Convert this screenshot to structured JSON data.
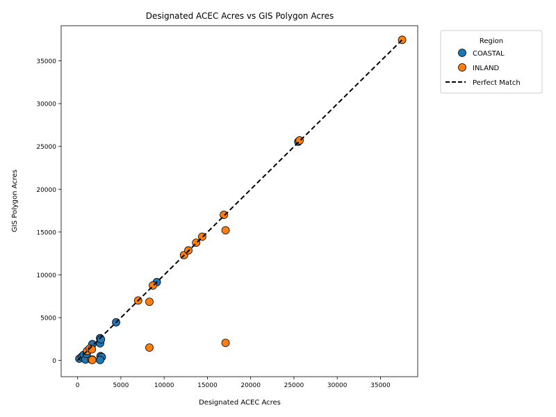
{
  "chart_data": {
    "type": "scatter",
    "title": "Designated ACEC Acres vs GIS Polygon Acres",
    "xlabel": "Designated ACEC Acres",
    "ylabel": "GIS Polygon Acres",
    "xlim": [
      -1900,
      39300
    ],
    "ylim": [
      -1900,
      39100
    ],
    "xticks": [
      0,
      5000,
      10000,
      15000,
      20000,
      25000,
      30000,
      35000
    ],
    "yticks": [
      0,
      5000,
      10000,
      15000,
      20000,
      25000,
      30000,
      35000
    ],
    "grid": false,
    "legend": {
      "title": "Region",
      "placement": "outside-top-right",
      "entries": [
        "COASTAL",
        "INLAND",
        "Perfect Match"
      ]
    },
    "series": [
      {
        "name": "COASTAL",
        "color": "#1f77b4",
        "points": [
          [
            200,
            200
          ],
          [
            500,
            450
          ],
          [
            700,
            650
          ],
          [
            900,
            100
          ],
          [
            1050,
            750
          ],
          [
            1700,
            1900
          ],
          [
            2600,
            2000
          ],
          [
            2600,
            2600
          ],
          [
            2700,
            2450
          ],
          [
            2650,
            500
          ],
          [
            2800,
            400
          ],
          [
            2600,
            50
          ],
          [
            1700,
            100
          ],
          [
            4450,
            4450
          ],
          [
            9150,
            9150
          ],
          [
            25500,
            25550
          ]
        ]
      },
      {
        "name": "INLAND",
        "color": "#ff7f0e",
        "points": [
          [
            1100,
            1100
          ],
          [
            1400,
            1400
          ],
          [
            1650,
            1300
          ],
          [
            1600,
            100
          ],
          [
            1700,
            50
          ],
          [
            7000,
            7000
          ],
          [
            8300,
            6850
          ],
          [
            8700,
            8750
          ],
          [
            8300,
            1500
          ],
          [
            12300,
            12300
          ],
          [
            12800,
            12850
          ],
          [
            13700,
            13750
          ],
          [
            14400,
            14450
          ],
          [
            16900,
            17000
          ],
          [
            17100,
            15200
          ],
          [
            17100,
            2050
          ],
          [
            25650,
            25700
          ],
          [
            37500,
            37450
          ]
        ]
      }
    ],
    "reference_line": {
      "name": "Perfect Match",
      "color": "#000000",
      "style": "dashed",
      "from": [
        0,
        0
      ],
      "to": [
        37500,
        37450
      ]
    }
  }
}
